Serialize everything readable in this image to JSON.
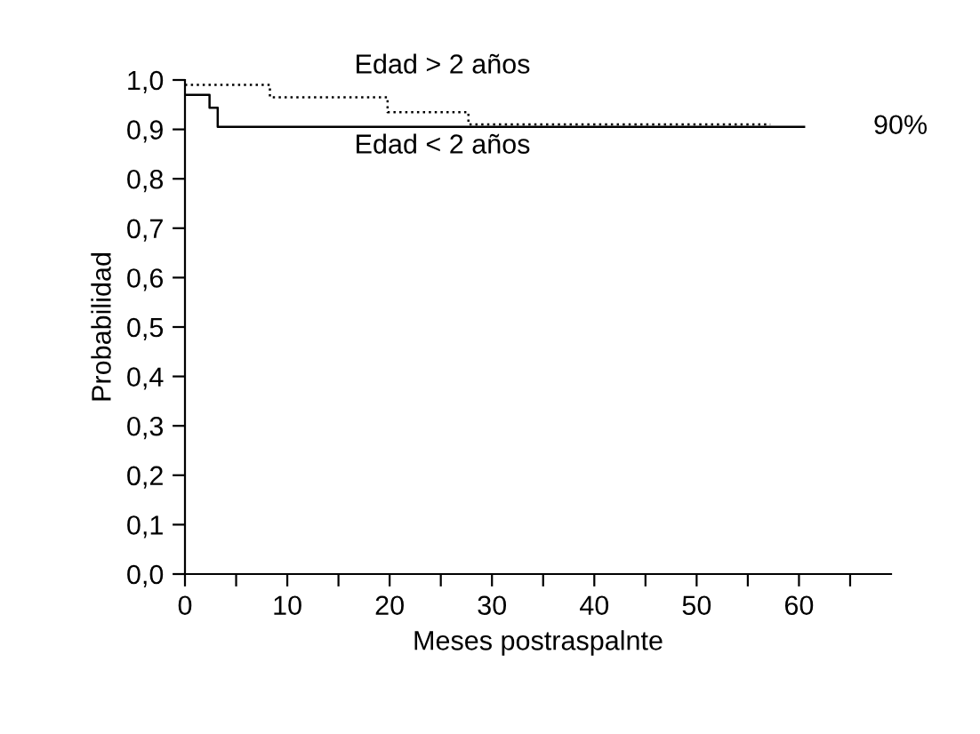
{
  "chart_data": {
    "type": "step",
    "xlabel": "Meses postraspalnte",
    "ylabel": "Probabilidad",
    "xlim": [
      0,
      69
    ],
    "xticks": [
      0,
      {
        "value": 5,
        "label": null
      },
      10,
      {
        "value": 15,
        "label": null
      },
      20,
      {
        "value": 25,
        "label": null
      },
      30,
      {
        "value": 35,
        "label": null
      },
      40,
      {
        "value": 45,
        "label": null
      },
      50,
      {
        "value": 55,
        "label": null
      },
      60,
      {
        "value": 65,
        "label": null
      }
    ],
    "ylim": [
      0,
      1.0
    ],
    "yticks": [
      {
        "value": 0,
        "label": "0,0"
      },
      {
        "value": 0.1,
        "label": "0,1"
      },
      {
        "value": 0.2,
        "label": "0,2"
      },
      {
        "value": 0.3,
        "label": "0,3"
      },
      {
        "value": 0.4,
        "label": "0,4"
      },
      {
        "value": 0.5,
        "label": "0,5"
      },
      {
        "value": 0.6,
        "label": "0,6"
      },
      {
        "value": 0.7,
        "label": "0,7"
      },
      {
        "value": 0.8,
        "label": "0,8"
      },
      {
        "value": 0.9,
        "label": "0,9"
      },
      {
        "value": 1.0,
        "label": "1,0"
      }
    ],
    "grid": false,
    "legend": false,
    "series": [
      {
        "name": "Edad > 2 años",
        "color": "#000000",
        "line_style": "dotted",
        "x": [
          0,
          8.3,
          19.8,
          27.7,
          57.2
        ],
        "values": [
          0.99,
          0.965,
          0.935,
          0.91,
          0.91
        ]
      },
      {
        "name": "Edad < 2 años",
        "color": "#000000",
        "line_style": "solid",
        "x": [
          0,
          2.4,
          3.2,
          60.5
        ],
        "values": [
          0.97,
          0.944,
          0.905,
          0.905
        ]
      }
    ],
    "annotations": [
      {
        "text": "90%",
        "x": 60.5,
        "y": 0.905
      }
    ]
  }
}
